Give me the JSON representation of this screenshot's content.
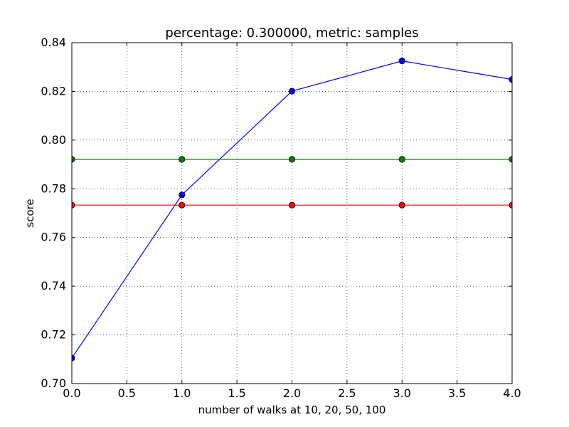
{
  "chart_data": {
    "type": "line",
    "title": "percentage: 0.300000, metric: samples",
    "xlabel": "number of walks at 10, 20, 50, 100",
    "ylabel": "score",
    "xlim": [
      0.0,
      4.0
    ],
    "ylim": [
      0.7,
      0.84
    ],
    "xticks": [
      0.0,
      0.5,
      1.0,
      1.5,
      2.0,
      2.5,
      3.0,
      3.5,
      4.0
    ],
    "xtick_labels": [
      "0.0",
      "0.5",
      "1.0",
      "1.5",
      "2.0",
      "2.5",
      "3.0",
      "3.5",
      "4.0"
    ],
    "yticks": [
      0.7,
      0.72,
      0.74,
      0.76,
      0.78,
      0.8,
      0.82,
      0.84
    ],
    "ytick_labels": [
      "0.70",
      "0.72",
      "0.74",
      "0.76",
      "0.78",
      "0.80",
      "0.82",
      "0.84"
    ],
    "grid": true,
    "x": [
      0,
      1,
      2,
      3,
      4
    ],
    "series": [
      {
        "color": "#0000ff",
        "values": [
          0.7105,
          0.7775,
          0.8201,
          0.8325,
          0.8249
        ]
      },
      {
        "color": "#008000",
        "values": [
          0.7921,
          0.7921,
          0.7921,
          0.7921,
          0.7921
        ]
      },
      {
        "color": "#ff0000",
        "values": [
          0.7733,
          0.7733,
          0.7733,
          0.7733,
          0.7733
        ]
      }
    ]
  }
}
